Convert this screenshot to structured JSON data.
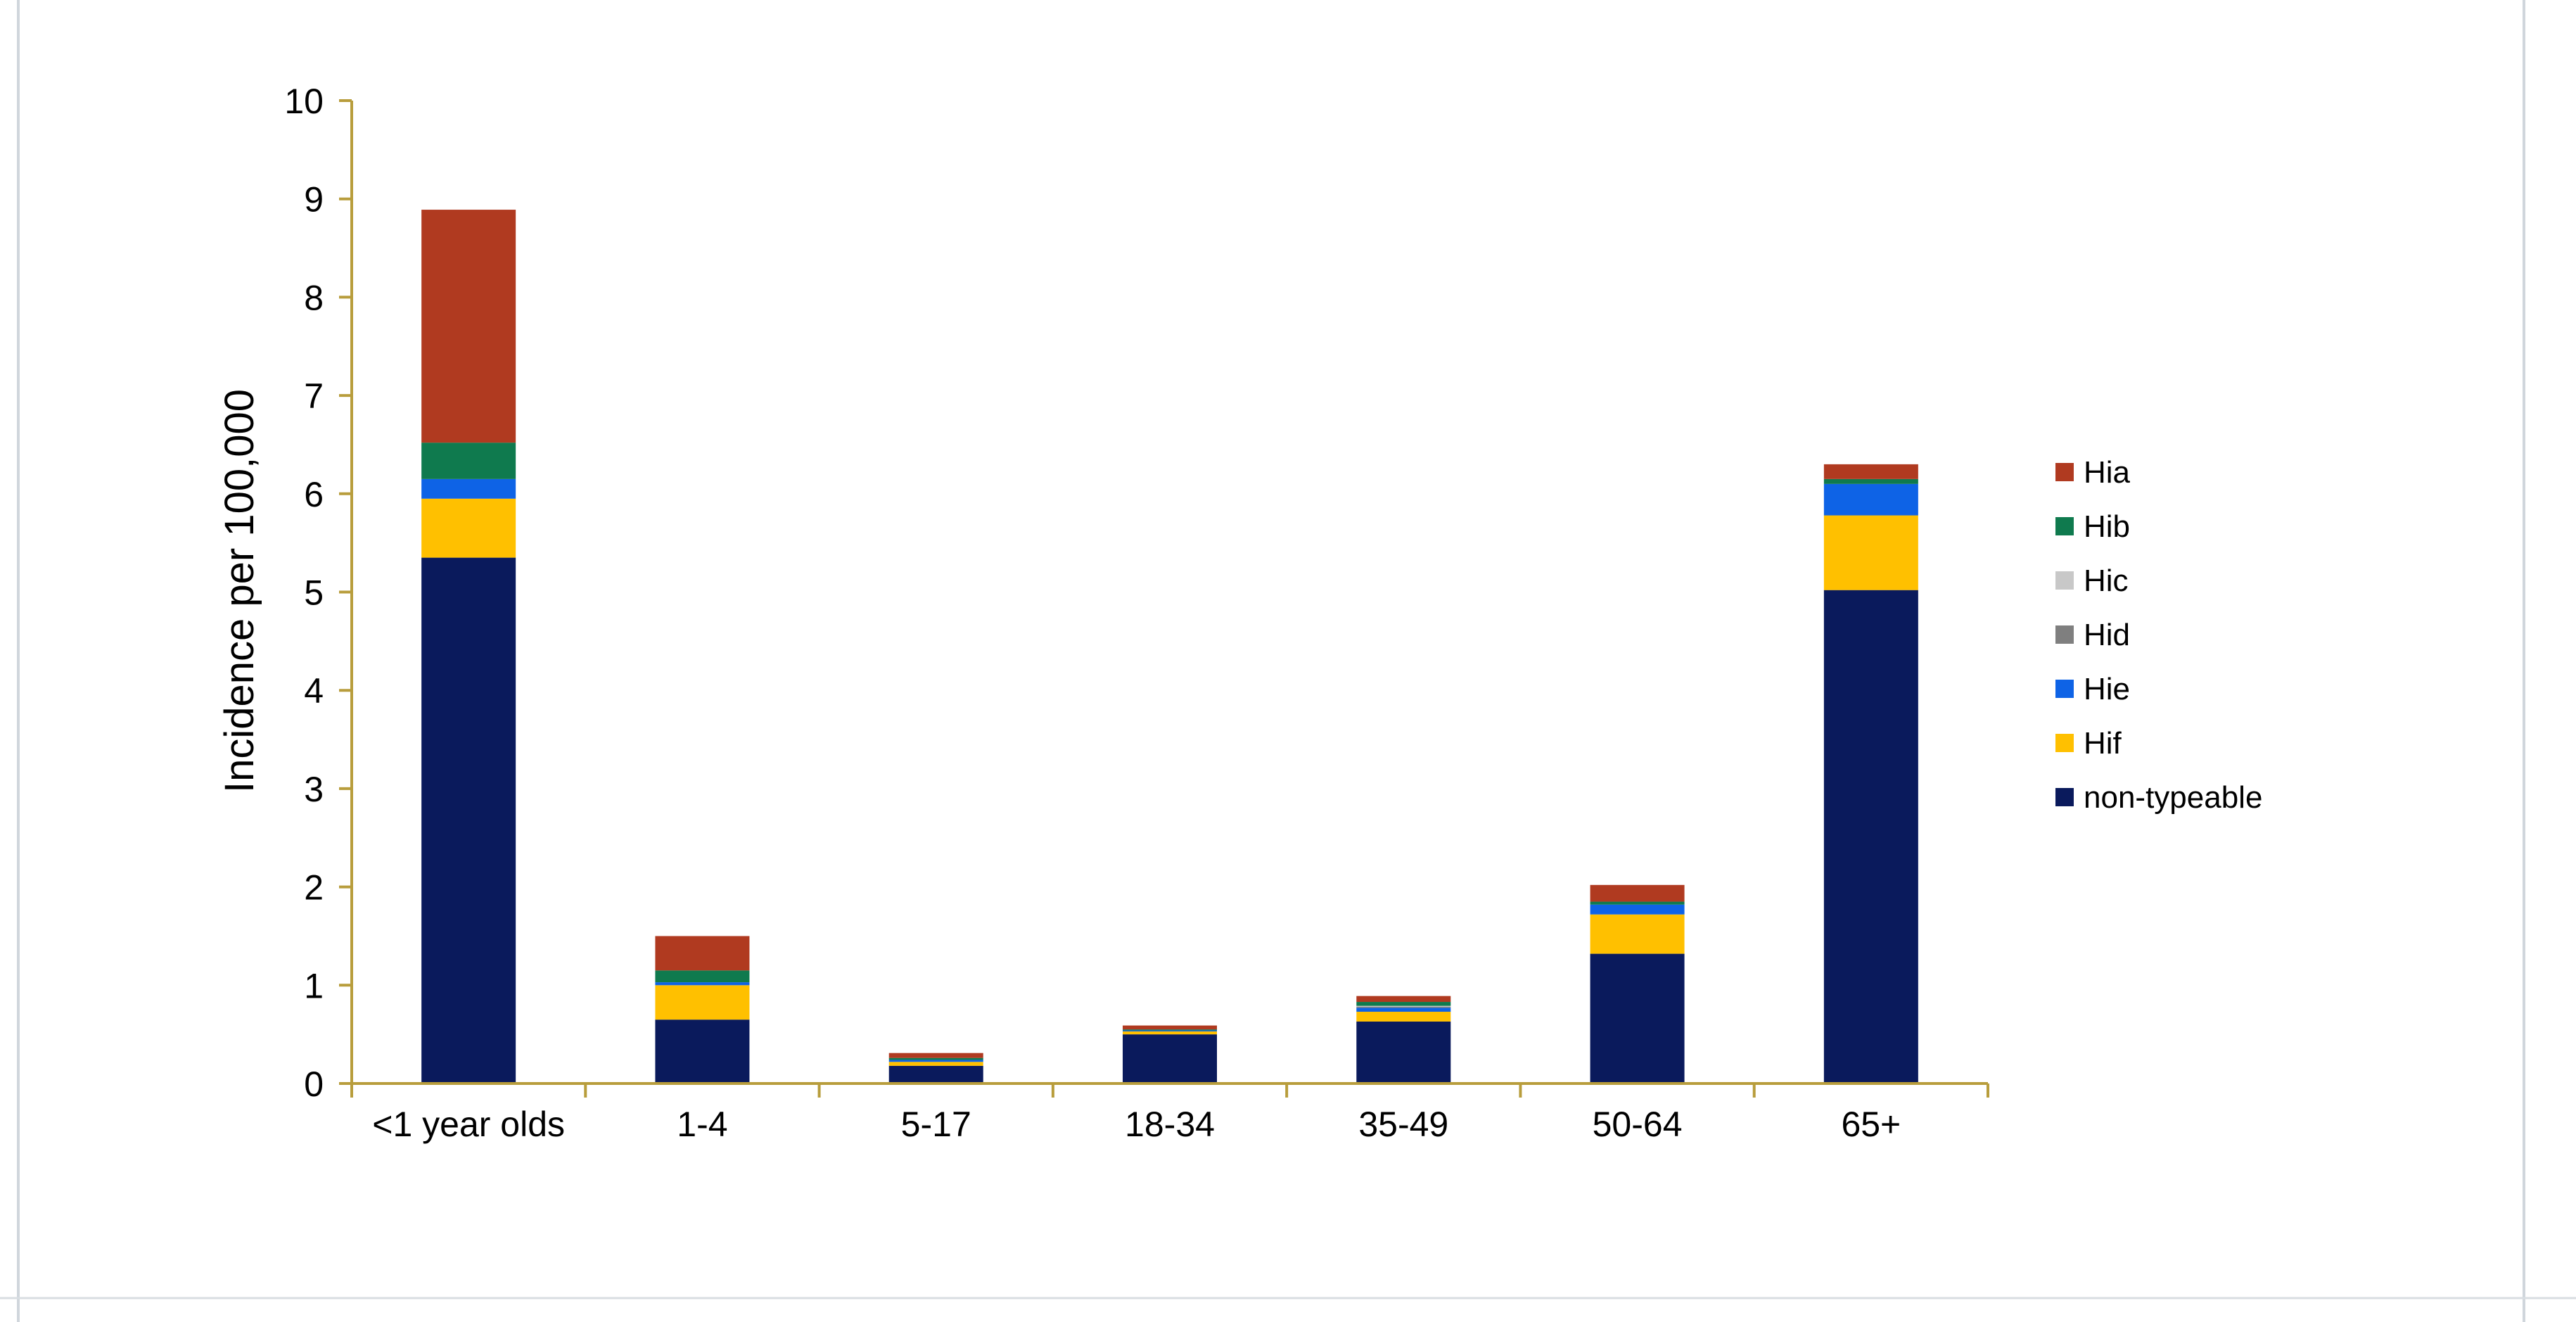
{
  "chart_data": {
    "type": "bar",
    "stacked": true,
    "title": "",
    "xlabel": "",
    "ylabel": "Incidence per 100,000",
    "ylim": [
      0,
      10
    ],
    "yticks": [
      "0",
      "1",
      "2",
      "3",
      "4",
      "5",
      "6",
      "7",
      "8",
      "9",
      "10"
    ],
    "categories": [
      "<1 year olds",
      "1-4",
      "5-17",
      "18-34",
      "35-49",
      "50-64",
      "65+"
    ],
    "series": [
      {
        "name": "non-typeable",
        "color": "#0a1a5c",
        "values": [
          5.35,
          0.65,
          0.18,
          0.5,
          0.63,
          1.32,
          5.02
        ]
      },
      {
        "name": "Hif",
        "color": "#ffc000",
        "values": [
          0.6,
          0.35,
          0.04,
          0.03,
          0.1,
          0.4,
          0.76
        ]
      },
      {
        "name": "Hie",
        "color": "#0e63e6",
        "values": [
          0.2,
          0.03,
          0.02,
          0.01,
          0.04,
          0.1,
          0.32
        ]
      },
      {
        "name": "Hid",
        "color": "#7f7f7f",
        "values": [
          0.0,
          0.0,
          0.0,
          0.0,
          0.01,
          0.0,
          0.0
        ]
      },
      {
        "name": "Hic",
        "color": "#c8c8c8",
        "values": [
          0.0,
          0.0,
          0.0,
          0.0,
          0.01,
          0.0,
          0.0
        ]
      },
      {
        "name": "Hib",
        "color": "#0f7a4e",
        "values": [
          0.37,
          0.12,
          0.02,
          0.01,
          0.04,
          0.03,
          0.05
        ]
      },
      {
        "name": "Hia",
        "color": "#b03a20",
        "values": [
          2.37,
          0.35,
          0.05,
          0.04,
          0.06,
          0.17,
          0.15
        ]
      }
    ],
    "legend": {
      "position": "right",
      "order": [
        "Hia",
        "Hib",
        "Hic",
        "Hid",
        "Hie",
        "Hif",
        "non-typeable"
      ]
    },
    "axis_color": "#b89d3c",
    "grid": false
  }
}
